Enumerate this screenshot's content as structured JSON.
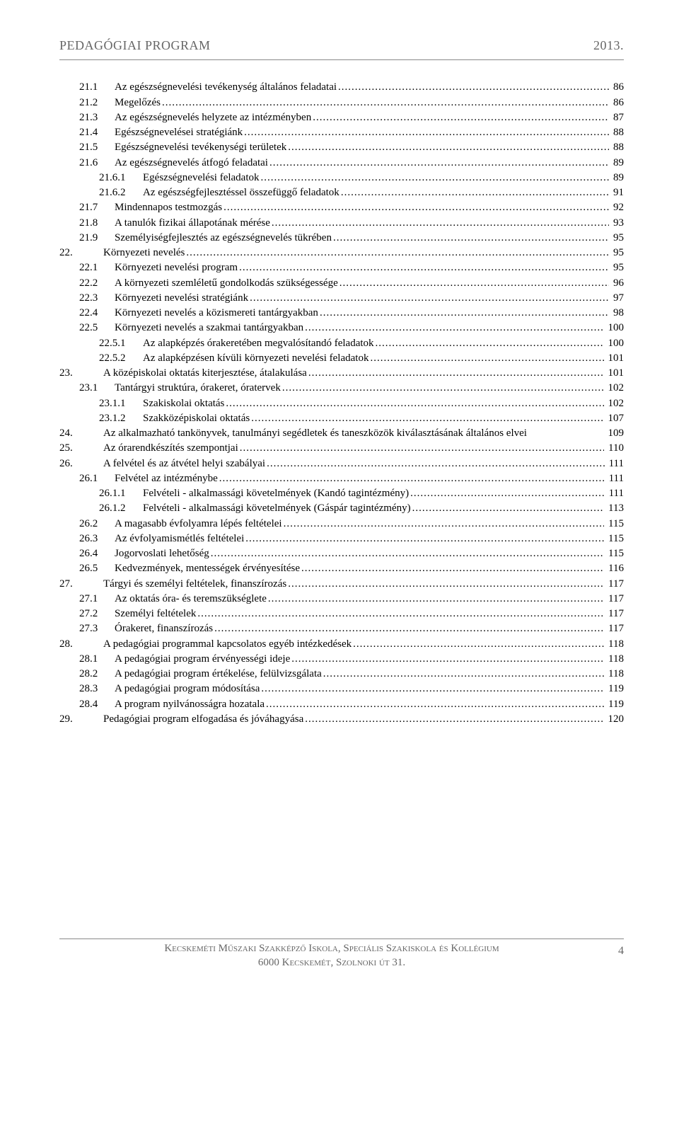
{
  "header": {
    "left": "PEDAGÓGIAI PROGRAM",
    "right": "2013."
  },
  "footer": {
    "line1": "Kecskeméti Műszaki Szakképző Iskola, Speciális Szakiskola és Kollégium",
    "line2": "6000 Kecskemét, Szolnoki út 31.",
    "page": "4"
  },
  "toc": [
    {
      "indent": 1,
      "num": "21.1",
      "title": "Az egészségnevelési tevékenység általános feladatai",
      "page": "86"
    },
    {
      "indent": 1,
      "num": "21.2",
      "title": "Megelőzés",
      "page": "86"
    },
    {
      "indent": 1,
      "num": "21.3",
      "title": "Az egészségnevelés helyzete az intézményben",
      "page": "87"
    },
    {
      "indent": 1,
      "num": "21.4",
      "title": "Egészségnevelései stratégiánk",
      "page": "88"
    },
    {
      "indent": 1,
      "num": "21.5",
      "title": "Egészségnevelési tevékenységi területek",
      "page": "88"
    },
    {
      "indent": 1,
      "num": "21.6",
      "title": "Az egészségnevelés átfogó feladatai",
      "page": "89"
    },
    {
      "indent": 2,
      "num": "21.6.1",
      "title": "Egészségnevelési feladatok",
      "page": "89"
    },
    {
      "indent": 2,
      "num": "21.6.2",
      "title": "Az egészségfejlesztéssel összefüggő feladatok",
      "page": "91"
    },
    {
      "indent": 1,
      "num": "21.7",
      "title": "Mindennapos testmozgás",
      "page": "92"
    },
    {
      "indent": 1,
      "num": "21.8",
      "title": "A tanulók fizikai állapotának mérése",
      "page": "93"
    },
    {
      "indent": 1,
      "num": "21.9",
      "title": "Személyiségfejlesztés az egészségnevelés tükrében",
      "page": "95"
    },
    {
      "indent": 0,
      "num": "22.",
      "title": "Környezeti nevelés",
      "page": "95"
    },
    {
      "indent": 1,
      "num": "22.1",
      "title": "Környezeti nevelési program",
      "page": "95"
    },
    {
      "indent": 1,
      "num": "22.2",
      "title": "A környezeti szemléletű gondolkodás szükségessége",
      "page": "96"
    },
    {
      "indent": 1,
      "num": "22.3",
      "title": "Környezeti nevelési stratégiánk",
      "page": "97"
    },
    {
      "indent": 1,
      "num": "22.4",
      "title": "Környezeti nevelés a közismereti tantárgyakban",
      "page": "98"
    },
    {
      "indent": 1,
      "num": "22.5",
      "title": "Környezeti nevelés a szakmai tantárgyakban",
      "page": "100"
    },
    {
      "indent": 2,
      "num": "22.5.1",
      "title": "Az alapképzés órakeretében megvalósítandó feladatok",
      "page": "100"
    },
    {
      "indent": 2,
      "num": "22.5.2",
      "title": "Az alapképzésen kívüli környezeti nevelési feladatok",
      "page": "101"
    },
    {
      "indent": 0,
      "num": "23.",
      "title": "A középiskolai oktatás kiterjesztése, átalakulása",
      "page": "101"
    },
    {
      "indent": 1,
      "num": "23.1",
      "title": "Tantárgyi struktúra, órakeret, óratervek",
      "page": "102"
    },
    {
      "indent": 2,
      "num": "23.1.1",
      "title": "Szakiskolai oktatás",
      "page": "102"
    },
    {
      "indent": 2,
      "num": "23.1.2",
      "title": "Szakközépiskolai oktatás",
      "page": "107"
    },
    {
      "indent": 0,
      "num": "24.",
      "title": "Az alkalmazható tankönyvek, tanulmányi segédletek és taneszközök kiválasztásának általános elvei",
      "page": "109",
      "nodots": true
    },
    {
      "indent": 0,
      "num": "25.",
      "title": "Az órarendkészítés szempontjai",
      "page": "110"
    },
    {
      "indent": 0,
      "num": "26.",
      "title": "A felvétel és az átvétel helyi szabályai",
      "page": "111"
    },
    {
      "indent": 1,
      "num": "26.1",
      "title": "Felvétel az intézménybe",
      "page": "111"
    },
    {
      "indent": 2,
      "num": "26.1.1",
      "title": "Felvételi - alkalmassági követelmények (Kandó tagintézmény)",
      "page": "111"
    },
    {
      "indent": 2,
      "num": "26.1.2",
      "title": "Felvételi - alkalmassági követelmények (Gáspár tagintézmény)",
      "page": "113"
    },
    {
      "indent": 1,
      "num": "26.2",
      "title": "A magasabb évfolyamra lépés feltételei",
      "page": "115"
    },
    {
      "indent": 1,
      "num": "26.3",
      "title": "Az évfolyamismétlés feltételei",
      "page": "115"
    },
    {
      "indent": 1,
      "num": "26.4",
      "title": "Jogorvoslati lehetőség",
      "page": "115"
    },
    {
      "indent": 1,
      "num": "26.5",
      "title": "Kedvezmények, mentességek érvényesítése",
      "page": "116"
    },
    {
      "indent": 0,
      "num": "27.",
      "title": "Tárgyi és személyi feltételek, finanszírozás",
      "page": "117"
    },
    {
      "indent": 1,
      "num": "27.1",
      "title": "Az oktatás óra- és teremszükséglete",
      "page": "117"
    },
    {
      "indent": 1,
      "num": "27.2",
      "title": "Személyi feltételek",
      "page": "117"
    },
    {
      "indent": 1,
      "num": "27.3",
      "title": "Órakeret, finanszírozás",
      "page": "117"
    },
    {
      "indent": 0,
      "num": "28.",
      "title": "A pedagógiai programmal kapcsolatos egyéb intézkedések",
      "page": "118"
    },
    {
      "indent": 1,
      "num": "28.1",
      "title": "A pedagógiai program érvényességi ideje",
      "page": "118"
    },
    {
      "indent": 1,
      "num": "28.2",
      "title": "A pedagógiai program értékelése, felülvizsgálata",
      "page": "118"
    },
    {
      "indent": 1,
      "num": "28.3",
      "title": "A pedagógiai program módosítása",
      "page": "119"
    },
    {
      "indent": 1,
      "num": "28.4",
      "title": "A program nyilvánosságra hozatala",
      "page": "119"
    },
    {
      "indent": 0,
      "num": "29.",
      "title": "Pedagógiai program elfogadása és jóváhagyása",
      "page": "120"
    }
  ]
}
